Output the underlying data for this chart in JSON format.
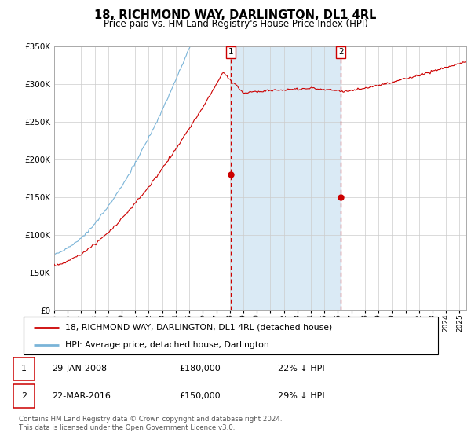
{
  "title": "18, RICHMOND WAY, DARLINGTON, DL1 4RL",
  "subtitle": "Price paid vs. HM Land Registry's House Price Index (HPI)",
  "ylim": [
    0,
    350000
  ],
  "yticks": [
    0,
    50000,
    100000,
    150000,
    200000,
    250000,
    300000,
    350000
  ],
  "hpi_color": "#7ab4d8",
  "price_color": "#cc0000",
  "shaded_region_color": "#daeaf5",
  "vertical_line_color": "#cc0000",
  "marker1_x": 2008.08,
  "marker1_y": 180000,
  "marker2_x": 2016.22,
  "marker2_y": 150000,
  "xmin": 1995,
  "xmax": 2025.5,
  "legend1_label": "18, RICHMOND WAY, DARLINGTON, DL1 4RL (detached house)",
  "legend2_label": "HPI: Average price, detached house, Darlington",
  "table_entries": [
    {
      "num": "1",
      "date": "29-JAN-2008",
      "price": "£180,000",
      "hpi": "22% ↓ HPI"
    },
    {
      "num": "2",
      "date": "22-MAR-2016",
      "price": "£150,000",
      "hpi": "29% ↓ HPI"
    }
  ],
  "footnote": "Contains HM Land Registry data © Crown copyright and database right 2024.\nThis data is licensed under the Open Government Licence v3.0.",
  "background_color": "#ffffff",
  "plot_bg_color": "#ffffff",
  "grid_color": "#cccccc"
}
